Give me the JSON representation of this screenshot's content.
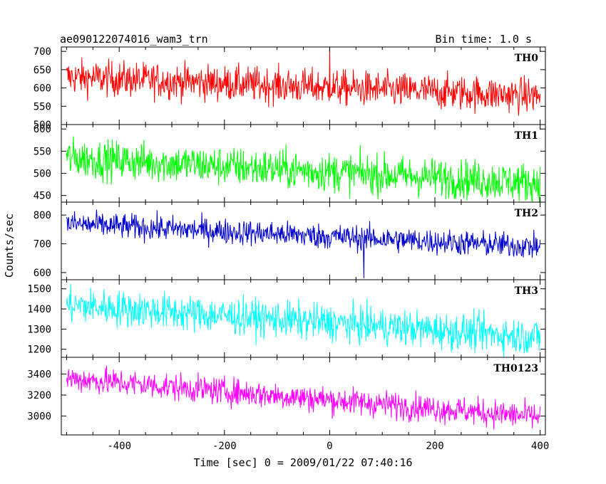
{
  "header": {
    "title": "ae090122074016_wam3_trn",
    "bin_time": "Bin time: 1.0 s"
  },
  "chart_data": {
    "type": "line",
    "xlabel": "Time [sec] 0 = 2009/01/22 07:40:16",
    "ylabel": "Counts/sec",
    "xlim": [
      -510,
      410
    ],
    "x_ticks": [
      -400,
      -200,
      0,
      200,
      400
    ],
    "x_range": [
      -500,
      400
    ],
    "bin_seconds": 1.0,
    "grid": false,
    "panels": [
      {
        "name": "TH0",
        "color": "#ff0000",
        "ylim": [
          500,
          712
        ],
        "y_ticks": [
          500,
          550,
          600,
          650,
          700
        ],
        "trend_start": 630,
        "trend_end": 578,
        "noise_sd": 24,
        "spikes": [
          {
            "x": 0,
            "y": 712
          }
        ]
      },
      {
        "name": "TH1",
        "color": "#00ff00",
        "ylim": [
          435,
          610
        ],
        "y_ticks": [
          450,
          500,
          550,
          600
        ],
        "trend_start": 535,
        "trend_end": 478,
        "noise_sd": 22,
        "spikes": []
      },
      {
        "name": "TH2",
        "color": "#0000cc",
        "ylim": [
          575,
          845
        ],
        "y_ticks": [
          600,
          700,
          800
        ],
        "trend_start": 770,
        "trend_end": 690,
        "noise_sd": 22,
        "spikes": [
          {
            "x": 65,
            "y": 580
          }
        ]
      },
      {
        "name": "TH3",
        "color": "#00ffff",
        "ylim": [
          1160,
          1545
        ],
        "y_ticks": [
          1200,
          1300,
          1400,
          1500
        ],
        "trend_start": 1420,
        "trend_end": 1260,
        "noise_sd": 45,
        "spikes": []
      },
      {
        "name": "TH0123",
        "color": "#ff00ff",
        "ylim": [
          2820,
          3560
        ],
        "y_ticks": [
          3000,
          3200,
          3400
        ],
        "trend_start": 3360,
        "trend_end": 2990,
        "noise_sd": 65,
        "spikes": []
      }
    ]
  }
}
